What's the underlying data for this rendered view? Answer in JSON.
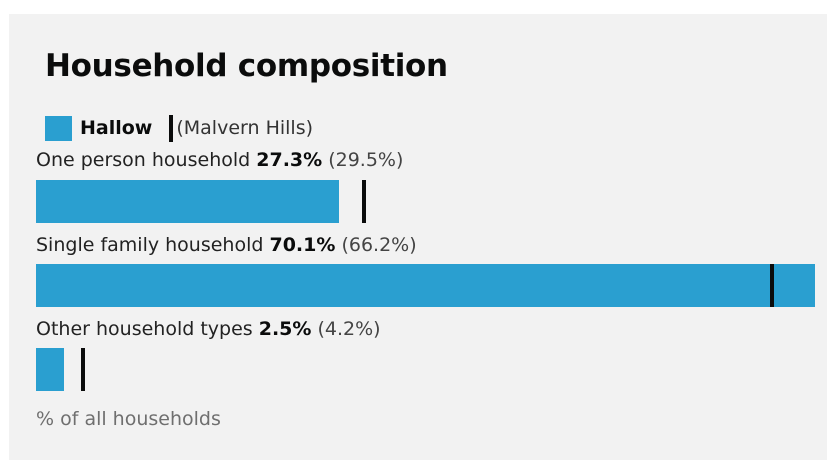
{
  "title": "Household composition",
  "legend": {
    "area_label": "Hallow",
    "comparison_label": "(Malvern Hills)"
  },
  "colors": {
    "bar": "#2a9fd0",
    "marker": "#0b0c0c"
  },
  "footnote": "% of all households",
  "rows": [
    {
      "label": "One person household",
      "value_text": "27.3%",
      "comparison_text": "(29.5%)"
    },
    {
      "label": "Single family household",
      "value_text": "70.1%",
      "comparison_text": "(66.2%)"
    },
    {
      "label": "Other household types",
      "value_text": "2.5%",
      "comparison_text": "(4.2%)"
    }
  ],
  "chart_data": {
    "type": "bar",
    "orientation": "horizontal",
    "title": "Household composition",
    "categories": [
      "One person household",
      "Single family household",
      "Other household types"
    ],
    "series": [
      {
        "name": "Hallow",
        "values": [
          27.3,
          70.1,
          2.5
        ],
        "style": "bar"
      },
      {
        "name": "(Malvern Hills)",
        "values": [
          29.5,
          66.2,
          4.2
        ],
        "style": "marker-line"
      }
    ],
    "xlim": [
      0,
      70.1
    ],
    "unit": "% of all households",
    "grid": false,
    "legend_position": "top-left"
  }
}
